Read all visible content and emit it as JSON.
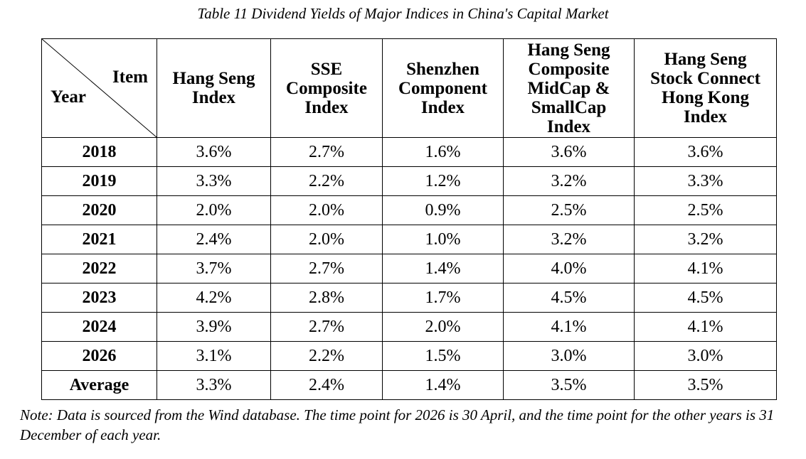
{
  "caption": "Table 11 Dividend Yields of Major Indices in China's Capital Market",
  "corner": {
    "item_label": "Item",
    "year_label": "Year"
  },
  "columns": [
    {
      "label_lines": [
        "Hang Seng",
        "Index"
      ]
    },
    {
      "label_lines": [
        "SSE",
        "Composite",
        "Index"
      ]
    },
    {
      "label_lines": [
        "Shenzhen",
        "Component",
        "Index"
      ]
    },
    {
      "label_lines": [
        "Hang Seng",
        "Composite",
        "MidCap &",
        "SmallCap",
        "Index"
      ]
    },
    {
      "label_lines": [
        "Hang Seng",
        "Stock Connect",
        "Hong Kong",
        "Index"
      ]
    }
  ],
  "rows": [
    {
      "year": "2018",
      "values": [
        "3.6%",
        "2.7%",
        "1.6%",
        "3.6%",
        "3.6%"
      ]
    },
    {
      "year": "2019",
      "values": [
        "3.3%",
        "2.2%",
        "1.2%",
        "3.2%",
        "3.3%"
      ]
    },
    {
      "year": "2020",
      "values": [
        "2.0%",
        "2.0%",
        "0.9%",
        "2.5%",
        "2.5%"
      ]
    },
    {
      "year": "2021",
      "values": [
        "2.4%",
        "2.0%",
        "1.0%",
        "3.2%",
        "3.2%"
      ]
    },
    {
      "year": "2022",
      "values": [
        "3.7%",
        "2.7%",
        "1.4%",
        "4.0%",
        "4.1%"
      ]
    },
    {
      "year": "2023",
      "values": [
        "4.2%",
        "2.8%",
        "1.7%",
        "4.5%",
        "4.5%"
      ]
    },
    {
      "year": "2024",
      "values": [
        "3.9%",
        "2.7%",
        "2.0%",
        "4.1%",
        "4.1%"
      ]
    },
    {
      "year": "2026",
      "values": [
        "3.1%",
        "2.2%",
        "1.5%",
        "3.0%",
        "3.0%"
      ]
    },
    {
      "year": "Average",
      "values": [
        "3.3%",
        "2.4%",
        "1.4%",
        "3.5%",
        "3.5%"
      ]
    }
  ],
  "note": "Note: Data is sourced from the Wind database. The time point for 2026 is 30 April, and the time point for the other years is 31 December of each year."
}
